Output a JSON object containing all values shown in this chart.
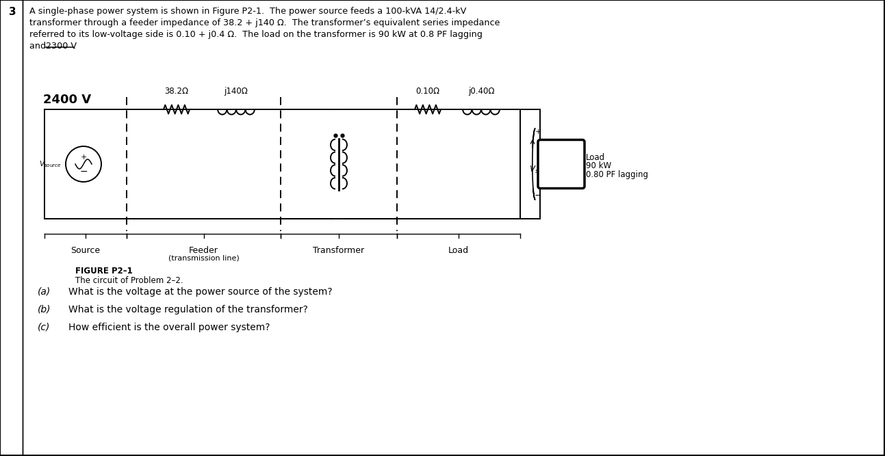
{
  "problem_number": "3",
  "line1": "A single-phase power system is shown in Figure P2-1.  The power source feeds a 100-kVA 14/2.4-kV",
  "line2": "transformer through a feeder impedance of 38.2 + j140 Ω.  The transformer’s equivalent series impedance",
  "line3": "referred to its low-voltage side is 0.10 + j0.4 Ω.  The load on the transformer is 90 kW at 0.8 PF lagging",
  "line4_before": "and ",
  "line4_strike": "2300 V",
  "line4_after": ".",
  "voltage_label": "2400 V",
  "feeder_R": "38.2Ω",
  "feeder_L": "j140Ω",
  "transformer_R": "0.10Ω",
  "transformer_L": "j0.40Ω",
  "load_line1": "Load",
  "load_line2": "90 kW",
  "load_line3": "0.80 PF lagging",
  "figure_label": "FIGURE P2–1",
  "figure_caption": "The circuit of Problem 2–2.",
  "sec_source": "Source",
  "sec_feeder": "Feeder",
  "sec_feeder2": "(transmission line)",
  "sec_transformer": "Transformer",
  "sec_load": "Load",
  "qa_letter": "(a)",
  "qa_text": "What is the voltage at the power source of the system?",
  "qb_letter": "(b)",
  "qb_text": "What is the voltage regulation of the transformer?",
  "qc_letter": "(c)",
  "qc_text": "How efficient is the overall power system?",
  "bg_color": "#ffffff",
  "line_color": "#000000"
}
